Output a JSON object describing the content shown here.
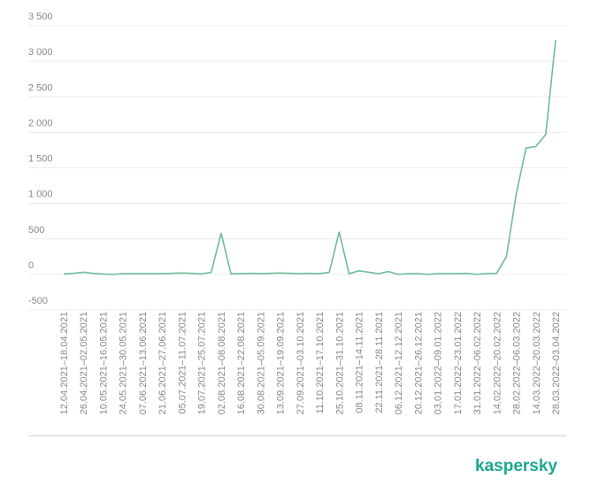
{
  "chart_data": {
    "type": "line",
    "categories": [
      "12.04.2021–18.04.2021",
      null,
      "26.04.2021–02.05.2021",
      null,
      "10.05.2021–16.05.2021",
      null,
      "24.05.2021–30.05.2021",
      null,
      "07.06.2021–13.06.2021",
      null,
      "21.06.2021–27.06.2021",
      null,
      "05.07.2021–11.07.2021",
      null,
      "19.07.2021–25.07.2021",
      null,
      "02.08.2021–08.08.2021",
      null,
      "16.08.2021–22.08.2021",
      null,
      "30.08.2021–05.09.2021",
      null,
      "13.09.2021–19.09.2021",
      null,
      "27.09.2021–03.10.2021",
      null,
      "11.10.2021–17.10.2021",
      null,
      "25.10.2021–31.10.2021",
      null,
      "08.11.2021–14.11.2021",
      null,
      "22.11.2021–28.11.2021",
      null,
      "06.12.2021–12.12.2021",
      null,
      "20.12.2021–26.12.2021",
      null,
      "03.01.2022–09.01.2022",
      null,
      "17.01.2022–23.01.2022",
      null,
      "31.01.2022–06.02.2022",
      null,
      "14.02.2022–20.02.2022",
      null,
      "28.02.2022–06.03.2022",
      null,
      "14.03.2022–20.03.2022",
      null,
      "28.03.2022–03.04.2022"
    ],
    "series": [
      {
        "color": "#6dbd97",
        "values": [
          5,
          15,
          30,
          15,
          5,
          0,
          10,
          10,
          10,
          10,
          10,
          15,
          20,
          15,
          5,
          30,
          580,
          10,
          10,
          15,
          10,
          15,
          20,
          15,
          10,
          15,
          10,
          30,
          600,
          10,
          50,
          30,
          10,
          40,
          0,
          10,
          10,
          0,
          10,
          10,
          10,
          15,
          0,
          10,
          15,
          250,
          1130,
          1780,
          1800,
          1970,
          3300
        ]
      }
    ],
    "ylim": [
      -500,
      3500
    ],
    "yticks": [
      -500,
      0,
      500,
      {
        "value": 1000,
        "label": "1 000"
      },
      {
        "value": 1500,
        "label": "1 500"
      },
      {
        "value": 2000,
        "label": "2 000"
      },
      {
        "value": 2500,
        "label": "2 500"
      },
      {
        "value": 3000,
        "label": "3 000"
      },
      {
        "value": 3500,
        "label": "3 500"
      }
    ],
    "grid": true
  },
  "brand": "kaspersky"
}
